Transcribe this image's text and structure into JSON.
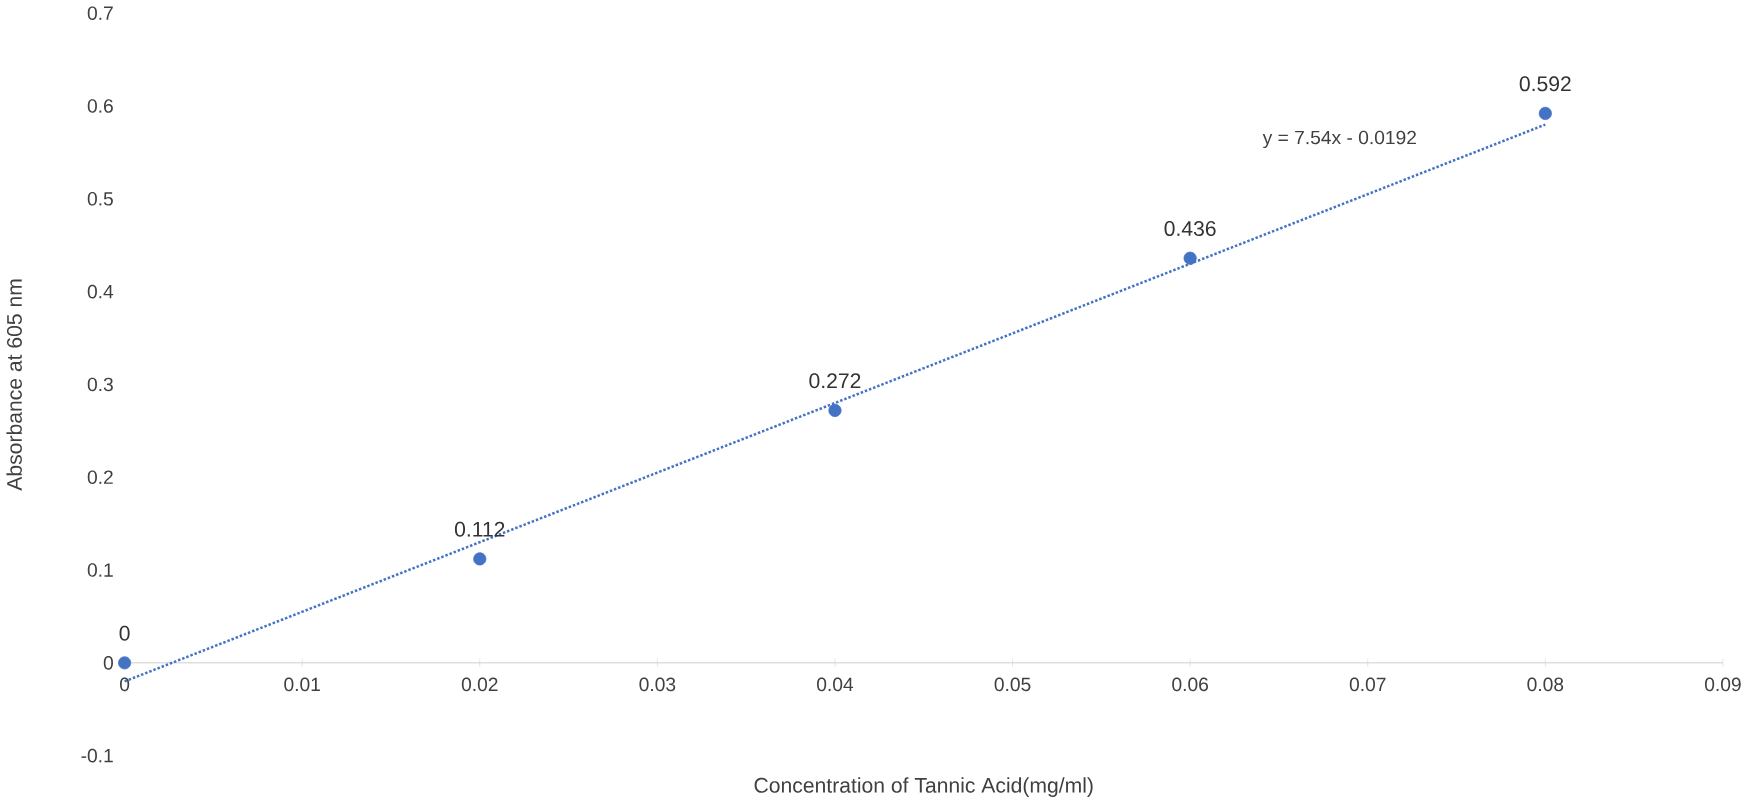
{
  "chart_data": {
    "type": "scatter",
    "xlabel": "Concentration of Tannic Acid(mg/ml)",
    "ylabel": "Absorbance at 605 nm",
    "annotations": [
      "y = 7.54x - 0.0192"
    ],
    "series": [
      {
        "color": "#4472c4",
        "marker": "circle",
        "x": [
          0,
          0.02,
          0.04,
          0.06,
          0.08
        ],
        "values": [
          0,
          0.112,
          0.272,
          0.436,
          0.592
        ],
        "data_labels": true
      },
      {
        "type": "line",
        "color": "#4472c4",
        "line_style": "dotted",
        "marker": "none",
        "x": [
          0,
          0.08
        ],
        "values": [
          -0.02,
          0.58
        ]
      }
    ],
    "xlim": [
      0,
      0.09
    ],
    "ylim": [
      -0.1,
      0.7
    ],
    "xticks": [
      0,
      0.01,
      0.02,
      0.03,
      0.04,
      0.05,
      0.06,
      0.07,
      0.08,
      0.09
    ],
    "yticks": [
      -0.1,
      0,
      0.1,
      0.2,
      0.3,
      0.4,
      0.5,
      0.6,
      0.7
    ],
    "grid": false
  }
}
